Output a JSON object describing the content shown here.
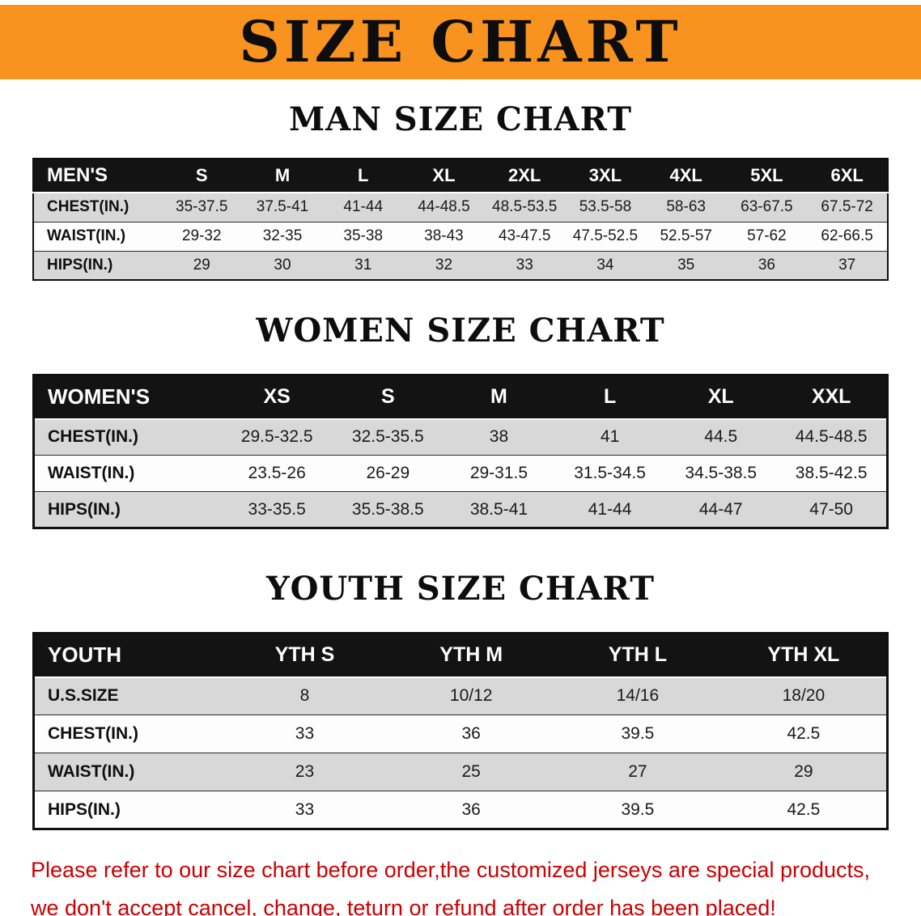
{
  "banner": {
    "title": "SIZE CHART",
    "bg_color": "#f7931e",
    "text_color": "#0d0d0d"
  },
  "men": {
    "heading": "MAN SIZE CHART",
    "header": [
      "MEN'S",
      "S",
      "M",
      "L",
      "XL",
      "2XL",
      "3XL",
      "4XL",
      "5XL",
      "6XL"
    ],
    "rows": [
      {
        "label": "CHEST(IN.)",
        "values": [
          "35-37.5",
          "37.5-41",
          "41-44",
          "44-48.5",
          "48.5-53.5",
          "53.5-58",
          "58-63",
          "63-67.5",
          "67.5-72"
        ]
      },
      {
        "label": "WAIST(IN.)",
        "values": [
          "29-32",
          "32-35",
          "35-38",
          "38-43",
          "43-47.5",
          "47.5-52.5",
          "52.5-57",
          "57-62",
          "62-66.5"
        ]
      },
      {
        "label": "HIPS(IN.)",
        "values": [
          "29",
          "30",
          "31",
          "32",
          "33",
          "34",
          "35",
          "36",
          "37"
        ]
      }
    ]
  },
  "women": {
    "heading": "WOMEN SIZE CHART",
    "header": [
      "WOMEN'S",
      "XS",
      "S",
      "M",
      "L",
      "XL",
      "XXL"
    ],
    "rows": [
      {
        "label": "CHEST(IN.)",
        "values": [
          "29.5-32.5",
          "32.5-35.5",
          "38",
          "41",
          "44.5",
          "44.5-48.5"
        ]
      },
      {
        "label": "WAIST(IN.)",
        "values": [
          "23.5-26",
          "26-29",
          "29-31.5",
          "31.5-34.5",
          "34.5-38.5",
          "38.5-42.5"
        ]
      },
      {
        "label": "HIPS(IN.)",
        "values": [
          "33-35.5",
          "35.5-38.5",
          "38.5-41",
          "41-44",
          "44-47",
          "47-50"
        ]
      }
    ]
  },
  "youth": {
    "heading": "YOUTH SIZE CHART",
    "header": [
      "YOUTH",
      "YTH S",
      "YTH M",
      "YTH L",
      "YTH XL"
    ],
    "rows": [
      {
        "label": "U.S.SIZE",
        "values": [
          "8",
          "10/12",
          "14/16",
          "18/20"
        ]
      },
      {
        "label": "CHEST(IN.)",
        "values": [
          "33",
          "36",
          "39.5",
          "42.5"
        ]
      },
      {
        "label": "WAIST(IN.)",
        "values": [
          "23",
          "25",
          "27",
          "29"
        ]
      },
      {
        "label": "HIPS(IN.)",
        "values": [
          "33",
          "36",
          "39.5",
          "42.5"
        ]
      }
    ]
  },
  "disclaimer": {
    "line1": "Please refer to our size chart before order,the customized jerseys are special products,",
    "line2": "we don't accept cancel, change, teturn or refund after order has been placed!",
    "text_color": "#cc0000"
  }
}
